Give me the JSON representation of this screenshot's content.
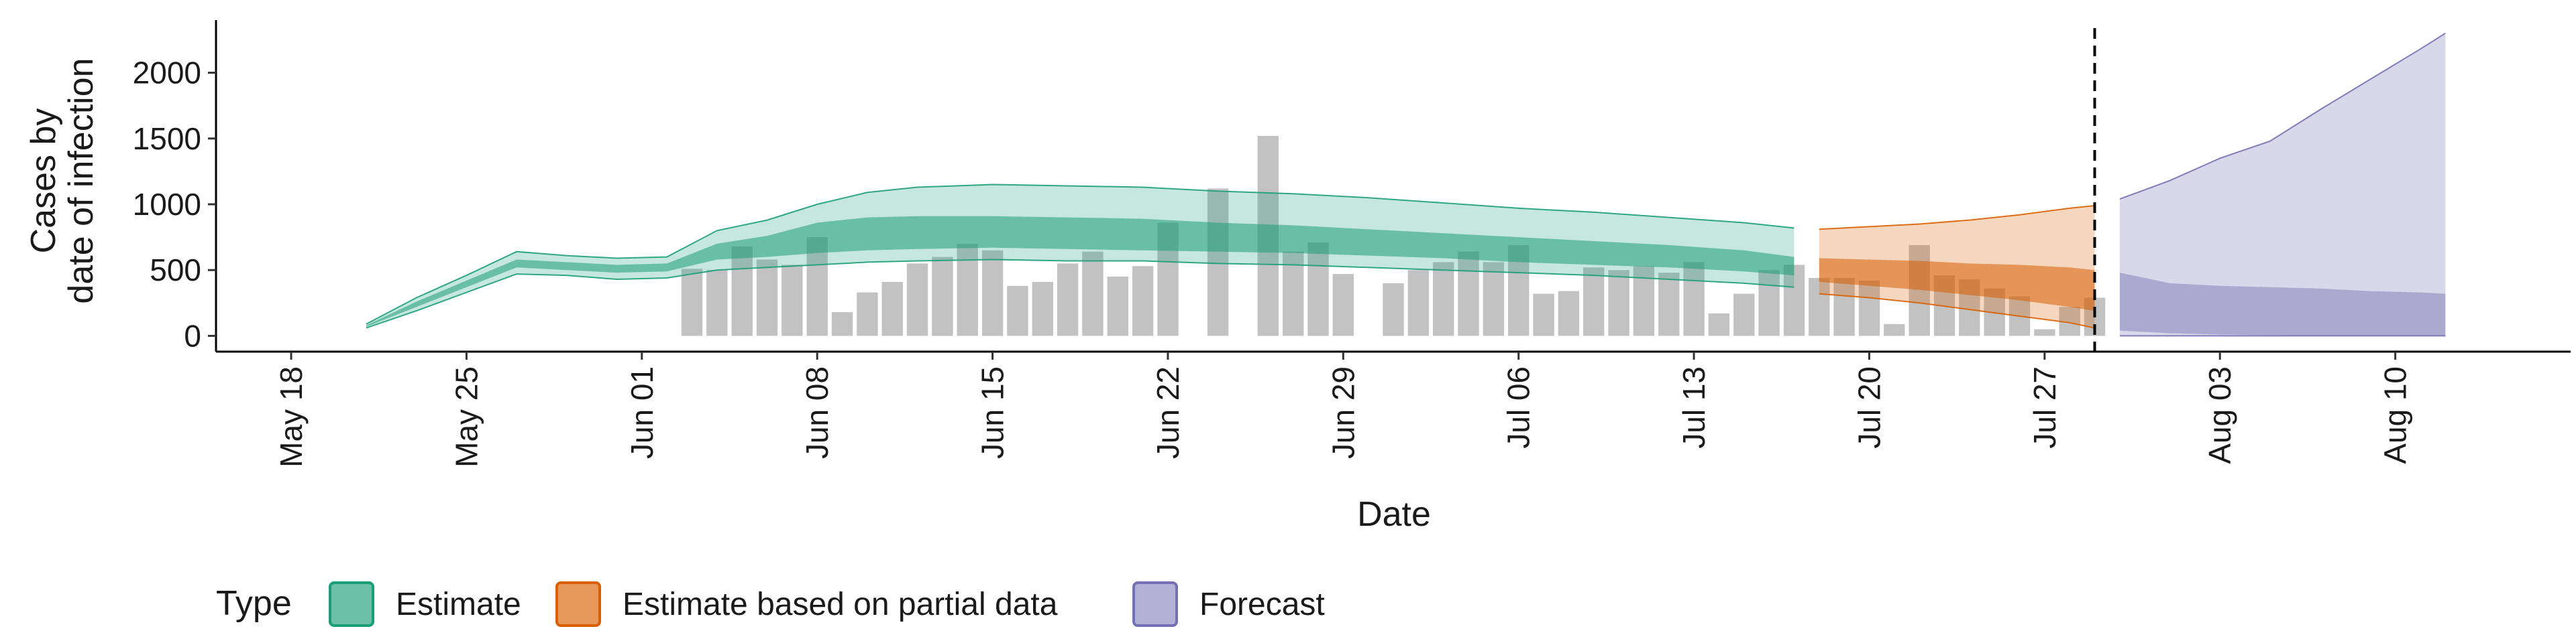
{
  "chart_data": {
    "type": "bar+area",
    "xlabel": "Date",
    "ylabel_lines": [
      "Cases by",
      "date of infection"
    ],
    "x_range": [
      "2020-05-15",
      "2020-08-17"
    ],
    "ylim": [
      -120,
      2400
    ],
    "y_ticks": [
      0,
      500,
      1000,
      1500,
      2000
    ],
    "x_ticks": [
      {
        "date": "2020-05-18",
        "label": "May 18"
      },
      {
        "date": "2020-05-25",
        "label": "May 25"
      },
      {
        "date": "2020-06-01",
        "label": "Jun 01"
      },
      {
        "date": "2020-06-08",
        "label": "Jun 08"
      },
      {
        "date": "2020-06-15",
        "label": "Jun 15"
      },
      {
        "date": "2020-06-22",
        "label": "Jun 22"
      },
      {
        "date": "2020-06-29",
        "label": "Jun 29"
      },
      {
        "date": "2020-07-06",
        "label": "Jul 06"
      },
      {
        "date": "2020-07-13",
        "label": "Jul 13"
      },
      {
        "date": "2020-07-20",
        "label": "Jul 20"
      },
      {
        "date": "2020-07-27",
        "label": "Jul 27"
      },
      {
        "date": "2020-08-03",
        "label": "Aug 03"
      },
      {
        "date": "2020-08-10",
        "label": "Aug 10"
      }
    ],
    "vline_date": "2020-07-29",
    "colors": {
      "estimate": "#1b9e77",
      "partial": "#d95f02",
      "forecast": "#7570b3",
      "bars": "#999999"
    },
    "bars": {
      "start_date": "2020-06-03",
      "values": [
        510,
        500,
        680,
        580,
        540,
        750,
        180,
        330,
        410,
        550,
        600,
        700,
        650,
        380,
        410,
        550,
        640,
        450,
        530,
        860,
        0,
        1120,
        0,
        1520,
        640,
        710,
        470,
        0,
        400,
        500,
        560,
        640,
        560,
        690,
        320,
        340,
        520,
        500,
        530,
        480,
        560,
        170,
        320,
        500,
        540,
        440,
        440,
        420,
        90,
        690,
        460,
        430,
        360,
        300,
        50,
        220,
        290
      ]
    },
    "series": [
      {
        "name": "Estimate",
        "legend_label": "Estimate",
        "color": "#1b9e77",
        "points": [
          [
            "2020-05-21",
            60,
            90,
            70,
            80
          ],
          [
            "2020-05-23",
            190,
            290,
            220,
            260
          ],
          [
            "2020-05-25",
            330,
            460,
            370,
            420
          ],
          [
            "2020-05-27",
            470,
            640,
            520,
            580
          ],
          [
            "2020-05-29",
            460,
            610,
            500,
            560
          ],
          [
            "2020-05-31",
            430,
            590,
            480,
            540
          ],
          [
            "2020-06-02",
            440,
            600,
            490,
            550
          ],
          [
            "2020-06-04",
            500,
            800,
            580,
            700
          ],
          [
            "2020-06-06",
            520,
            880,
            600,
            760
          ],
          [
            "2020-06-08",
            540,
            1000,
            630,
            860
          ],
          [
            "2020-06-10",
            560,
            1090,
            650,
            900
          ],
          [
            "2020-06-12",
            570,
            1130,
            660,
            910
          ],
          [
            "2020-06-15",
            580,
            1150,
            670,
            910
          ],
          [
            "2020-06-18",
            570,
            1140,
            660,
            900
          ],
          [
            "2020-06-21",
            570,
            1130,
            650,
            890
          ],
          [
            "2020-06-24",
            550,
            1100,
            640,
            860
          ],
          [
            "2020-06-27",
            540,
            1080,
            630,
            840
          ],
          [
            "2020-06-30",
            520,
            1050,
            610,
            810
          ],
          [
            "2020-07-03",
            500,
            1010,
            590,
            780
          ],
          [
            "2020-07-06",
            480,
            970,
            560,
            750
          ],
          [
            "2020-07-09",
            460,
            940,
            540,
            720
          ],
          [
            "2020-07-12",
            430,
            900,
            520,
            690
          ],
          [
            "2020-07-15",
            400,
            860,
            490,
            650
          ],
          [
            "2020-07-17",
            370,
            820,
            460,
            600
          ]
        ]
      },
      {
        "name": "Estimate based on partial data",
        "legend_label": "Estimate based on partial data",
        "color": "#d95f02",
        "points": [
          [
            "2020-07-18",
            320,
            810,
            410,
            590
          ],
          [
            "2020-07-20",
            290,
            830,
            380,
            580
          ],
          [
            "2020-07-22",
            250,
            850,
            350,
            570
          ],
          [
            "2020-07-24",
            200,
            880,
            310,
            550
          ],
          [
            "2020-07-26",
            150,
            920,
            270,
            540
          ],
          [
            "2020-07-28",
            100,
            970,
            220,
            520
          ],
          [
            "2020-07-29",
            60,
            990,
            190,
            500
          ]
        ]
      },
      {
        "name": "Forecast",
        "legend_label": "Forecast",
        "color": "#7570b3",
        "points": [
          [
            "2020-07-30",
            0,
            1040,
            40,
            480
          ],
          [
            "2020-08-01",
            0,
            1180,
            20,
            400
          ],
          [
            "2020-08-03",
            0,
            1350,
            10,
            380
          ],
          [
            "2020-08-05",
            0,
            1480,
            5,
            370
          ],
          [
            "2020-08-07",
            0,
            1720,
            3,
            360
          ],
          [
            "2020-08-09",
            0,
            1950,
            2,
            340
          ],
          [
            "2020-08-11",
            0,
            2180,
            1,
            330
          ],
          [
            "2020-08-12",
            0,
            2300,
            0,
            320
          ]
        ]
      }
    ],
    "legend": {
      "title": "Type",
      "position": "bottom"
    }
  }
}
